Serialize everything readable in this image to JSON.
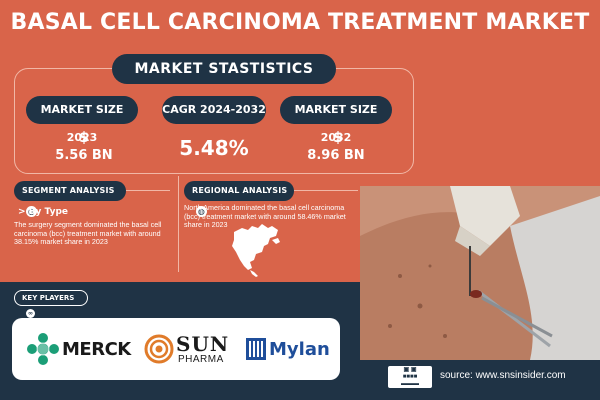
{
  "title": "BASAL CELL CARCINOMA TREATMENT MARKET",
  "stats_heading": "MARKET STASTISTICS",
  "stats": [
    {
      "label": "MARKET SIZE 2023",
      "prefix": "$",
      "value": "5.56 BN"
    },
    {
      "label": "CAGR 2024-2032",
      "prefix": "",
      "value": "5.48%"
    },
    {
      "label": "MARKET SIZE 2032",
      "prefix": "$",
      "value": "8.96 BN"
    }
  ],
  "segment": {
    "heading": "SEGMENT ANALYSIS",
    "subheading": "> By Type",
    "text": "The surgery segment dominated the basal cell carcinoma (bcc) treatment market with around 38.15% market share in 2023"
  },
  "regional": {
    "heading": "REGIONAL ANALYSIS",
    "text": "North America dominated the basal cell carcinoma (bcc) treatment market with around 58.46% market share in 2023"
  },
  "key_players": {
    "heading": "KEY PLAYERS",
    "logos": [
      "MERCK",
      "SUN",
      "PHARMA",
      "Mylan"
    ]
  },
  "source": "source: www.snsinsider.com",
  "colors": {
    "background": "#d9644a",
    "navy": "#1f3345",
    "merck_green": "#1b9e77",
    "sun_orange": "#e07b2a",
    "mylan_blue": "#1f4e9a"
  }
}
